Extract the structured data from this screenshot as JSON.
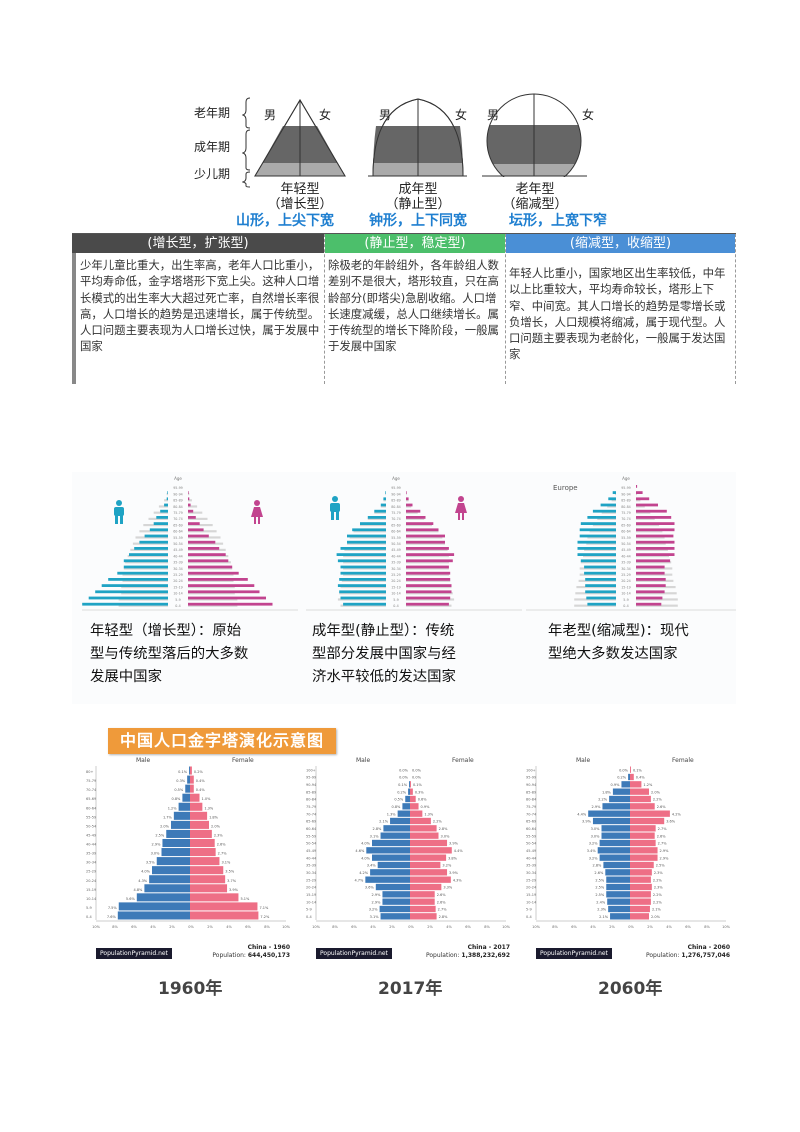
{
  "section1": {
    "stages": [
      "老年期",
      "成年期",
      "少儿期"
    ],
    "sex": {
      "male": "男",
      "female": "女"
    },
    "types": [
      {
        "name": "年轻型",
        "alt": "（增长型）",
        "shape": "山形，上尖下宽"
      },
      {
        "name": "成年型",
        "alt": "（静止型）",
        "shape": "钟形，上下同宽"
      },
      {
        "name": "老年型",
        "alt": "（缩减型）",
        "shape": "坛形，上宽下窄"
      }
    ],
    "table": [
      {
        "header": "(增长型，扩张型)",
        "color": "#4a4a4a",
        "text": "少年儿童比重大，出生率高，老年人口比重小，平均寿命低，金字塔塔形下宽上尖。这种人口增长模式的出生率大大超过死亡率，自然增长率很高，人口增长的趋势是迅速增长，属于传统型。人口问题主要表现为人口增长过快，属于发展中国家"
      },
      {
        "header": "(静止型，稳定型)",
        "color": "#4cbf6b",
        "text": "除极老的年龄组外，各年龄组人数差别不是很大，塔形较直，只在高龄部分(即塔尖)急剧收缩。人口增长速度减缓，总人口继续增长。属于传统型的增长下降阶段，一般属于发展中国家"
      },
      {
        "header": "(缩减型，收缩型)",
        "color": "#4a8fd6",
        "text": "年轻人比重小，国家地区出生率较低，中年以上比重较大，平均寿命较长，塔形上下窄、中间宽。其人口增长的趋势是零增长或负增长，人口规模将缩减，属于现代型。人口问题主要表现为老龄化，一般属于发达国家"
      }
    ]
  },
  "section2": {
    "charts": [
      {
        "age_label": "Age",
        "region": "",
        "captions": [
          "年轻型（增长型）：原始",
          "型与传统型落后的大多数",
          "发展中国家"
        ]
      },
      {
        "age_label": "Age",
        "region": "",
        "captions": [
          "成年型(静止型）：传统",
          "型部分发展中国家与经",
          "济水平较低的发达国家"
        ]
      },
      {
        "age_label": "Age",
        "region": "Europe",
        "captions": [
          "年老型(缩减型)：现代",
          "型绝大多数发达国家"
        ]
      }
    ],
    "colors": {
      "male": "#1fa3c4",
      "female": "#c2448f"
    }
  },
  "section3": {
    "title": "中国人口金字塔演化示意图",
    "male_label": "Male",
    "female_label": "Female",
    "source": "PopulationPyramid.net",
    "population_prefix": "Population: ",
    "colors": {
      "male": "#3d7ab8",
      "female": "#ee6f86"
    },
    "pyramids": [
      {
        "country": "China - 1960",
        "population": "644,450,173",
        "year": "1960年"
      },
      {
        "country": "China - 2017",
        "population": "1,388,232,692",
        "year": "2017年"
      },
      {
        "country": "China - 2060",
        "population": "1,276,757,046",
        "year": "2060年"
      }
    ],
    "x_ticks": [
      "10%",
      "8%",
      "6%",
      "4%",
      "2%",
      "0%",
      "2%",
      "4%",
      "6%",
      "8%",
      "10%"
    ]
  },
  "chart_data": [
    {
      "type": "bar",
      "title": "China - 1960",
      "categories": [
        "0-4",
        "5-9",
        "10-14",
        "15-19",
        "20-24",
        "25-29",
        "30-34",
        "35-39",
        "40-44",
        "45-49",
        "50-54",
        "55-59",
        "60-64",
        "65-69",
        "70-74",
        "75-79",
        "80+"
      ],
      "series": [
        {
          "name": "Male",
          "values": [
            7.6,
            7.5,
            5.6,
            4.8,
            4.3,
            4.0,
            3.5,
            3.0,
            2.9,
            2.5,
            2.0,
            1.7,
            1.2,
            0.8,
            0.5,
            0.3,
            0.1
          ]
        },
        {
          "name": "Female",
          "values": [
            7.2,
            7.1,
            5.1,
            3.9,
            3.7,
            3.5,
            3.1,
            2.7,
            2.6,
            2.3,
            2.0,
            1.8,
            1.3,
            1.0,
            0.4,
            0.4,
            0.2
          ]
        }
      ],
      "xlabel": "%",
      "ylabel": "Age"
    },
    {
      "type": "bar",
      "title": "China - 2017",
      "categories": [
        "0-4",
        "5-9",
        "10-14",
        "15-19",
        "20-24",
        "25-29",
        "30-34",
        "35-39",
        "40-44",
        "45-49",
        "50-54",
        "55-59",
        "60-64",
        "65-69",
        "70-74",
        "75-79",
        "80-84",
        "85-89",
        "90-94",
        "95-99",
        "100+"
      ],
      "series": [
        {
          "name": "Male",
          "values": [
            3.1,
            3.2,
            2.9,
            2.9,
            3.6,
            4.7,
            4.2,
            3.4,
            4.0,
            4.6,
            4.0,
            3.1,
            2.8,
            2.1,
            1.3,
            0.8,
            0.5,
            0.2,
            0.1,
            0.0,
            0.0
          ]
        },
        {
          "name": "Female",
          "values": [
            2.8,
            2.7,
            2.6,
            2.6,
            3.3,
            4.3,
            3.9,
            3.2,
            3.8,
            4.4,
            3.9,
            3.0,
            2.8,
            2.2,
            1.3,
            0.9,
            0.6,
            0.3,
            0.1,
            0.0,
            0.0
          ]
        }
      ],
      "xlabel": "%",
      "ylabel": "Age"
    },
    {
      "type": "bar",
      "title": "China - 2060",
      "categories": [
        "0-4",
        "5-9",
        "10-14",
        "15-19",
        "20-24",
        "25-29",
        "30-34",
        "35-39",
        "40-44",
        "45-49",
        "50-54",
        "55-59",
        "60-64",
        "65-69",
        "70-74",
        "75-79",
        "80-84",
        "85-89",
        "90-94",
        "95-99",
        "100+"
      ],
      "series": [
        {
          "name": "Male",
          "values": [
            2.1,
            2.3,
            2.4,
            2.5,
            2.5,
            2.5,
            2.6,
            2.8,
            3.2,
            3.4,
            3.2,
            3.0,
            3.0,
            3.9,
            4.4,
            2.9,
            2.2,
            1.8,
            0.9,
            0.2,
            0.0
          ]
        },
        {
          "name": "Female",
          "values": [
            2.0,
            2.1,
            2.2,
            2.2,
            2.3,
            2.2,
            2.3,
            2.5,
            2.9,
            2.9,
            2.7,
            2.6,
            2.7,
            3.6,
            4.2,
            2.6,
            2.2,
            2.0,
            1.2,
            0.4,
            0.1
          ]
        }
      ],
      "xlabel": "%",
      "ylabel": "Age"
    }
  ]
}
